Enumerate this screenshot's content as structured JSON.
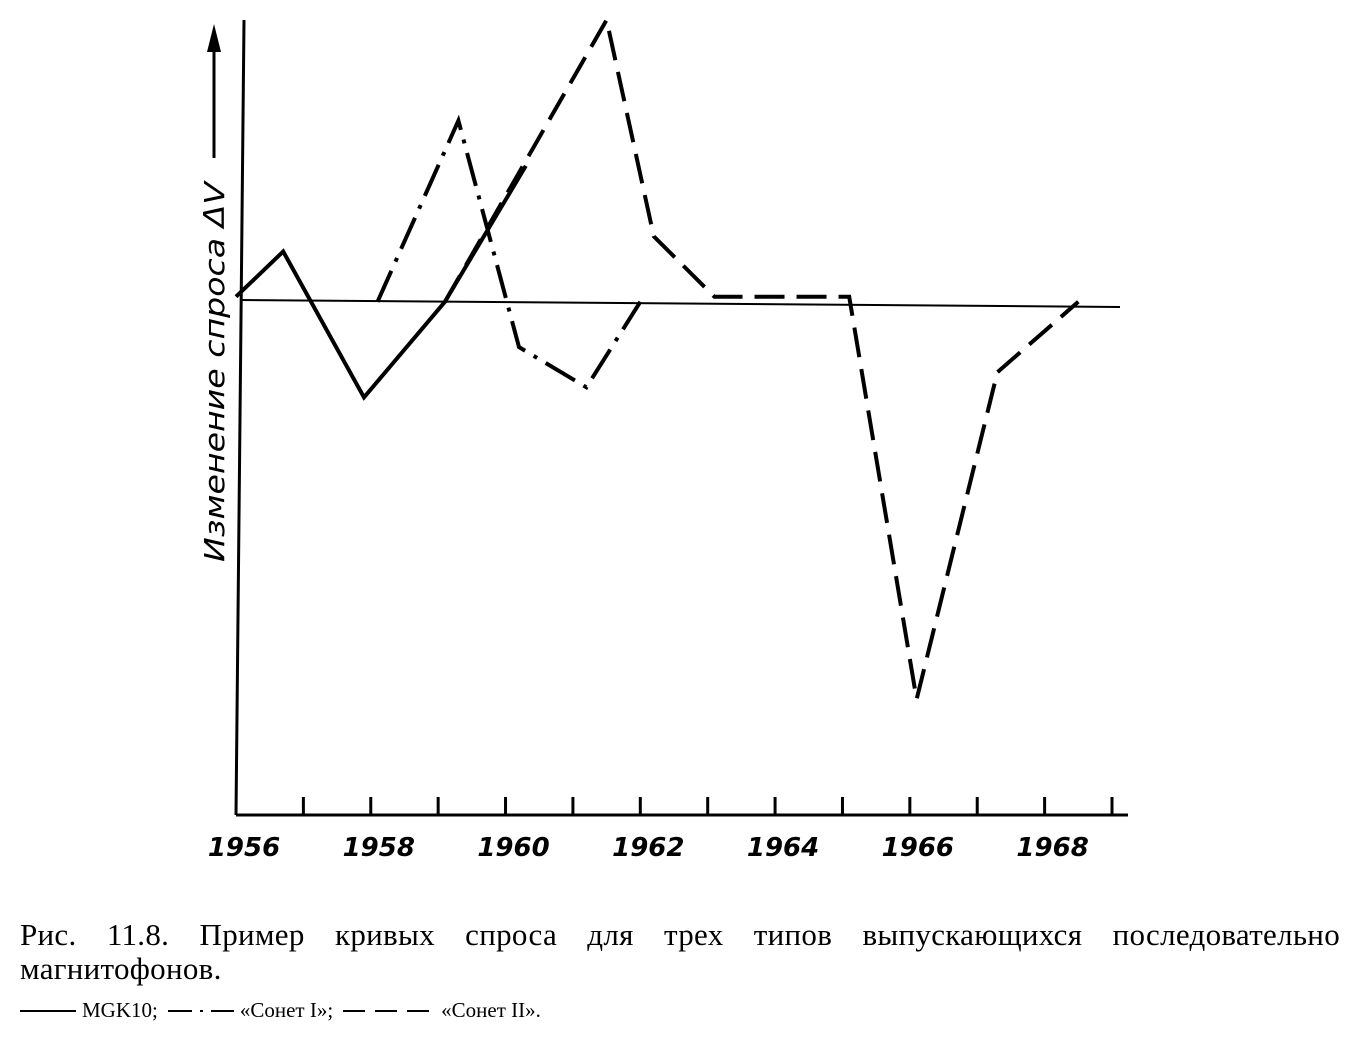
{
  "chart_data": {
    "type": "line",
    "xlabel": "",
    "ylabel": "Изменение спроса ΔV",
    "x_ticks": [
      1956,
      1957,
      1958,
      1959,
      1960,
      1961,
      1962,
      1963,
      1964,
      1965,
      1966,
      1967,
      1968,
      1969
    ],
    "x_tick_labels": [
      "1956",
      "1958",
      "1960",
      "1962",
      "1964",
      "1966",
      "1968"
    ],
    "xlim": [
      1956,
      1969
    ],
    "ylim": [
      -5.1,
      2.8
    ],
    "grid": false,
    "series": [
      {
        "name": "MGK10",
        "style": "solid",
        "x": [
          1956,
          1956.7,
          1957.9,
          1959.1,
          1960.3
        ],
        "y": [
          0.05,
          0.5,
          -0.95,
          0.0,
          1.35
        ]
      },
      {
        "name": "«Сонет I»",
        "style": "dash-dot",
        "x": [
          1958.1,
          1959.3,
          1960.2,
          1961.2,
          1962.0
        ],
        "y": [
          0.0,
          1.8,
          -0.45,
          -0.85,
          0.0
        ]
      },
      {
        "name": "«Сонет II»",
        "style": "dashed",
        "x": [
          1959.1,
          1961.5,
          1962.2,
          1963.1,
          1965.1,
          1966.1,
          1967.3,
          1968.5
        ],
        "y": [
          0.0,
          2.8,
          0.65,
          0.05,
          0.05,
          -3.95,
          -0.7,
          0.0
        ]
      }
    ]
  },
  "caption": {
    "figure_text": "Рис. 11.8. Пример кривых спроса для трех типов выпускающихся последовательно магнитофонов.",
    "legend": [
      {
        "label": "MGK10;",
        "style": "solid"
      },
      {
        "label": "«Сонет I»;",
        "style": "dash-dot"
      },
      {
        "label": "«Сонет II».",
        "style": "dashed"
      }
    ]
  },
  "colors": {
    "ink": "#000000",
    "paper": "#ffffff"
  }
}
